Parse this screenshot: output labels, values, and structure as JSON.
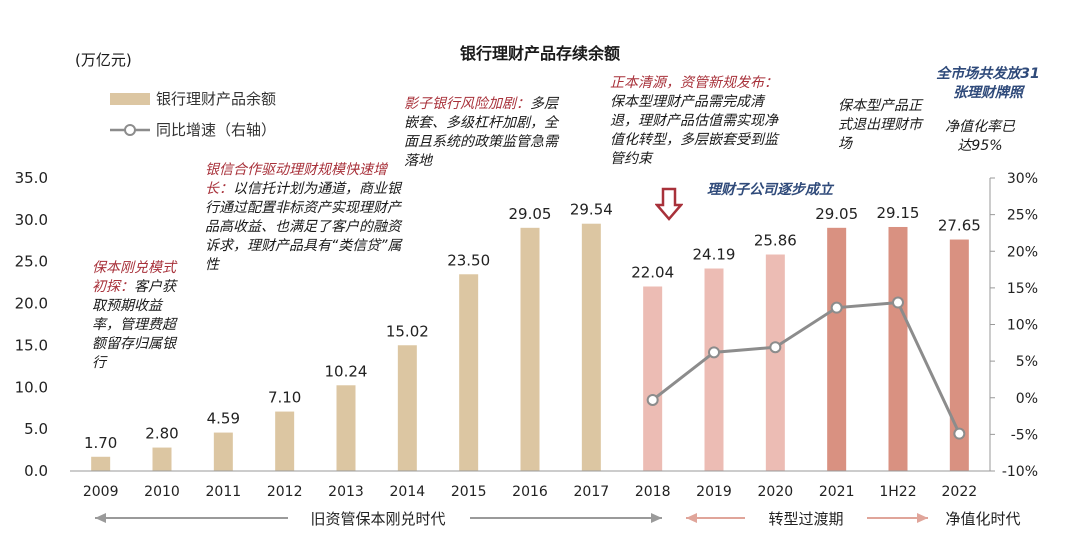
{
  "chart_data": {
    "type": "bar",
    "title": "银行理财产品存续余额",
    "ylabel_left": "(万亿元)",
    "categories": [
      "2009",
      "2010",
      "2011",
      "2012",
      "2013",
      "2014",
      "2015",
      "2016",
      "2017",
      "2018",
      "2019",
      "2020",
      "2021",
      "1H22",
      "2022"
    ],
    "series": [
      {
        "name": "银行理财产品余额",
        "type": "bar",
        "axis": "left",
        "values": [
          1.7,
          2.8,
          4.59,
          7.1,
          10.24,
          15.02,
          23.5,
          29.05,
          29.54,
          22.04,
          24.19,
          25.86,
          29.05,
          29.15,
          27.65
        ],
        "value_labels": [
          "1.70",
          "2.80",
          "4.59",
          "7.10",
          "10.24",
          "15.02",
          "23.50",
          "29.05",
          "29.54",
          "22.04",
          "24.19",
          "25.86",
          "29.05",
          "29.15",
          "27.65"
        ]
      },
      {
        "name": "同比增速（右轴）",
        "type": "line",
        "axis": "right",
        "x": [
          "2018",
          "2019",
          "2020",
          "2021",
          "1H22",
          "2022"
        ],
        "values": [
          -0.3,
          6.2,
          6.9,
          12.3,
          13.0,
          -4.9
        ]
      }
    ],
    "bar_colors": {
      "era1": "#dcc6a2",
      "era2": "#ecbcb4",
      "era3": "#d99181",
      "line": "#8c8c8c"
    },
    "ylim_left": [
      0,
      35
    ],
    "yticks_left": [
      "0.0",
      "5.0",
      "10.0",
      "15.0",
      "20.0",
      "25.0",
      "30.0",
      "35.0"
    ],
    "ylim_right": [
      -10,
      30
    ],
    "yticks_right": [
      "-10%",
      "-5%",
      "0%",
      "5%",
      "10%",
      "15%",
      "20%",
      "25%",
      "30%"
    ],
    "legend": [
      "银行理财产品余额",
      "同比增速（右轴）"
    ],
    "legend_position": "top-left",
    "grid": false
  },
  "annotations": {
    "a1_head": "保本刚兑模式初探：",
    "a1_body": "客户获取预期收益率，管理费超额留存归属银行",
    "a2_head": "银信合作驱动理财规模快速增长：",
    "a2_body": "以信托计划为通道，商业银行通过配置非标资产实现理财产品高收益、也满足了客户的融资诉求，理财产品具有“类信贷”属性",
    "a3_head": "影子银行风险加剧：",
    "a3_body": "多层嵌套、多级杠杆加剧，全面且系统的政策监管急需落地",
    "a4_head": "正本清源，资管新规发布：",
    "a4_body": "保本型理财产品需完成清退，理财产品估值需实现净值化转型，多层嵌套受到监管约束",
    "a5": "理财子公司逐步成立",
    "a6": "保本型产品正式退出理财市场",
    "a7_head": "全市场共发放31张理财牌照",
    "a7_body": "净值化率已达95%"
  },
  "eras": {
    "era1": "旧资管保本刚兑时代",
    "era2": "转型过渡期",
    "era3": "净值化时代"
  }
}
